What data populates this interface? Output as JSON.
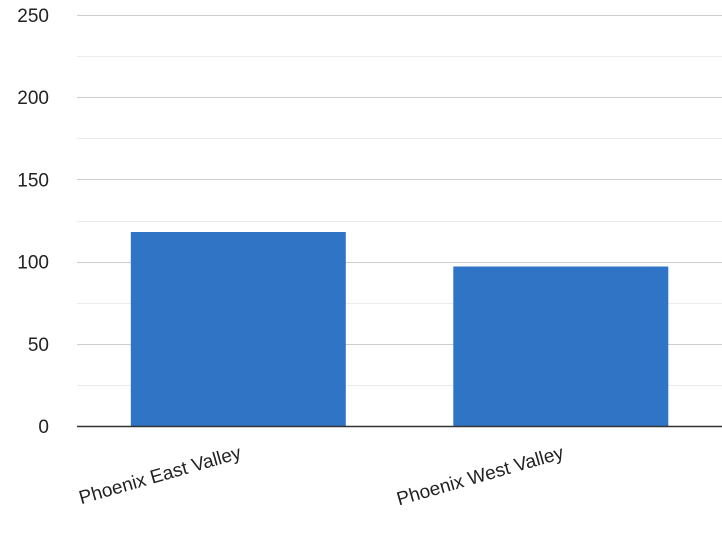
{
  "chart_data": {
    "type": "bar",
    "title": "",
    "xlabel": "",
    "ylabel": "",
    "categories": [
      "Phoenix East Valley",
      "Phoenix West Valley"
    ],
    "values": [
      118,
      97
    ],
    "ylim": [
      0,
      250
    ],
    "y_ticks": [
      0,
      50,
      100,
      150,
      200,
      250
    ],
    "y_tick_labels": [
      "0",
      "50",
      "100",
      "150",
      "200",
      "250"
    ],
    "grid": true,
    "minor_grid": true,
    "legend": "none",
    "bar_color": "#3074c6",
    "gridline_color": "#cccccc",
    "minor_gridline_color": "#ebebeb",
    "baseline_color": "#333333"
  }
}
